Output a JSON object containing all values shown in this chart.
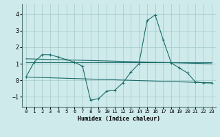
{
  "xlabel": "Humidex (Indice chaleur)",
  "xlim": [
    -0.5,
    23.5
  ],
  "ylim": [
    -1.6,
    4.6
  ],
  "yticks": [
    -1,
    0,
    1,
    2,
    3,
    4
  ],
  "xticks": [
    0,
    1,
    2,
    3,
    4,
    5,
    6,
    7,
    8,
    9,
    10,
    11,
    12,
    13,
    14,
    15,
    16,
    17,
    18,
    19,
    20,
    21,
    22,
    23
  ],
  "bg_color": "#ceeaea",
  "line_color": "#1a6b6b",
  "grid_color": "#aacece",
  "series": [
    {
      "x": [
        0,
        1,
        2,
        3,
        4,
        5,
        6,
        7,
        8,
        9,
        10,
        11,
        12,
        13,
        14,
        15,
        16,
        17,
        18,
        19,
        20,
        21,
        22,
        23
      ],
      "y": [
        0.2,
        1.1,
        1.55,
        1.55,
        1.4,
        1.25,
        1.1,
        0.85,
        -1.2,
        -1.1,
        -0.65,
        -0.6,
        -0.15,
        0.5,
        1.0,
        3.6,
        3.95,
        2.45,
        1.05,
        0.75,
        0.45,
        -0.1,
        -0.15,
        -0.15
      ],
      "has_marker": true
    },
    {
      "x": [
        0,
        23
      ],
      "y": [
        1.1,
        1.1
      ],
      "has_marker": false
    },
    {
      "x": [
        0,
        23
      ],
      "y": [
        1.3,
        1.0
      ],
      "has_marker": false
    },
    {
      "x": [
        0,
        23
      ],
      "y": [
        0.2,
        -0.15
      ],
      "has_marker": false
    }
  ]
}
